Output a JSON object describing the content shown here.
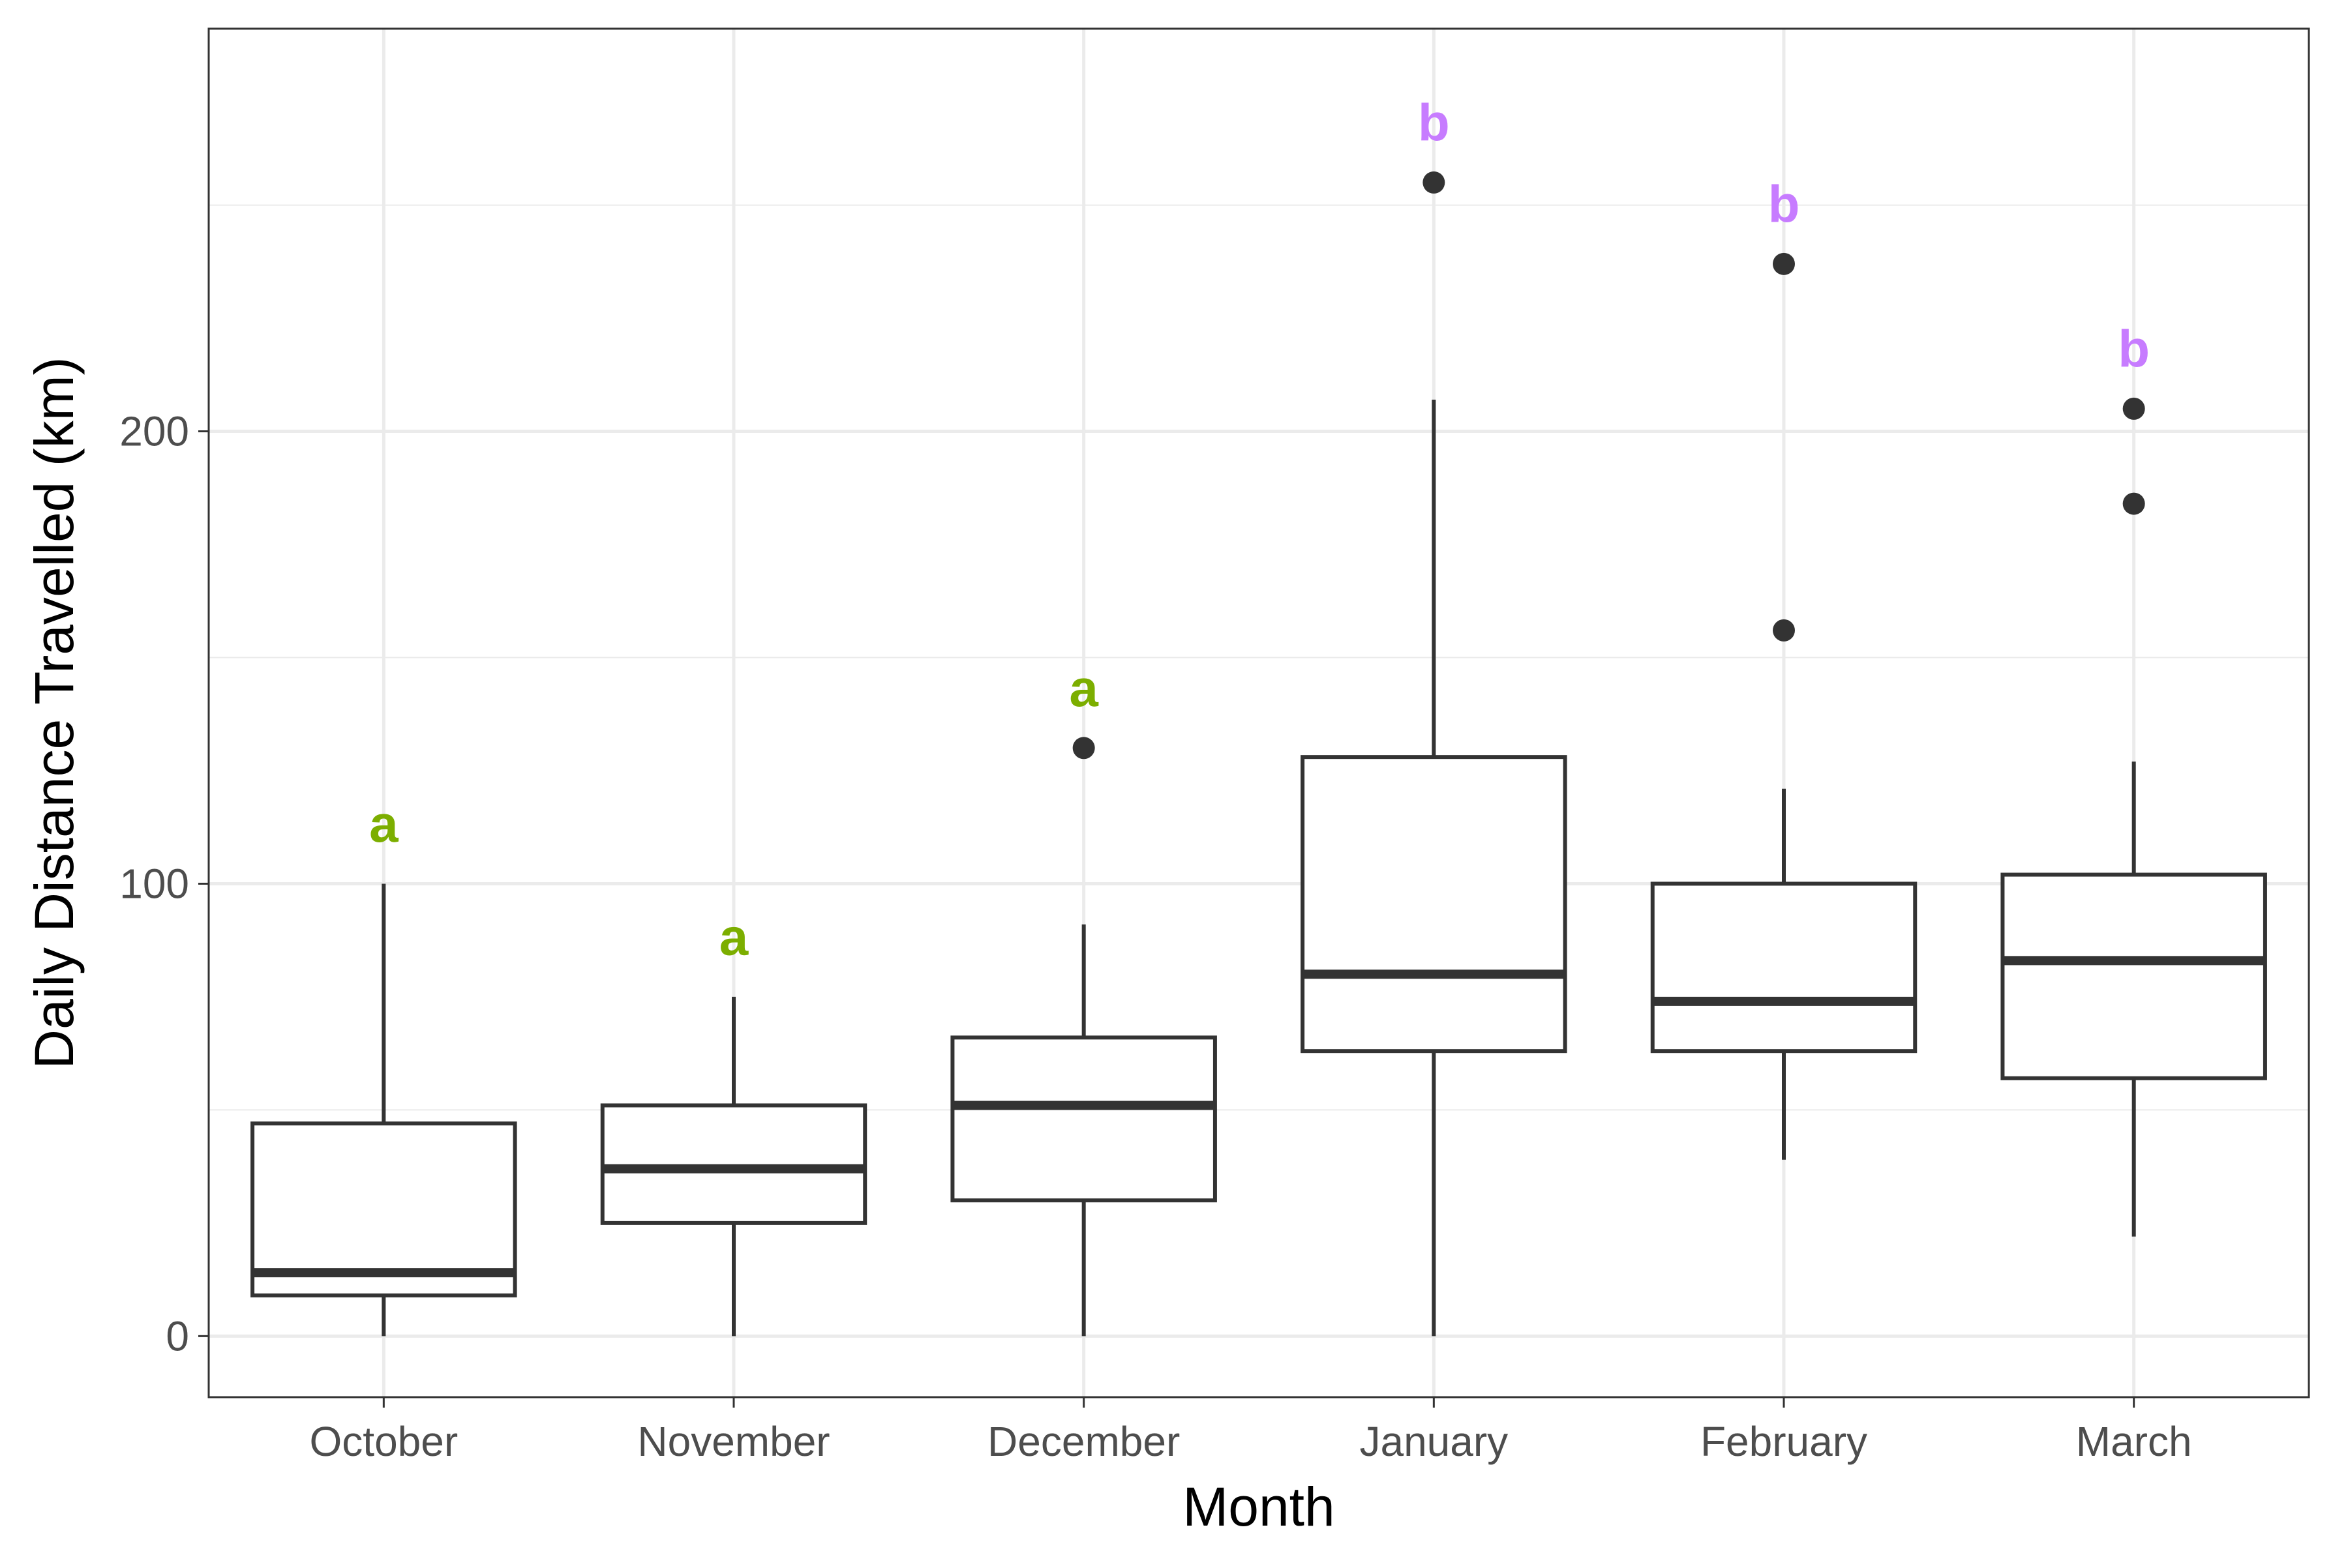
{
  "chart_data": {
    "type": "boxplot",
    "xlabel": "Month",
    "ylabel": "Daily Distance Travelled (km)",
    "categories": [
      "October",
      "November",
      "December",
      "January",
      "February",
      "March"
    ],
    "ylim": [
      -13.5,
      289
    ],
    "yticks": [
      0,
      100,
      200
    ],
    "grid": true,
    "boxes": [
      {
        "category": "October",
        "min": 0,
        "q1": 9,
        "median": 14,
        "q3": 47,
        "max": 100,
        "outliers": [],
        "letter": "a",
        "letter_color": "#7CAE00",
        "letter_y": 113
      },
      {
        "category": "November",
        "min": 0,
        "q1": 25,
        "median": 37,
        "q3": 51,
        "max": 75,
        "outliers": [],
        "letter": "a",
        "letter_color": "#7CAE00",
        "letter_y": 88
      },
      {
        "category": "December",
        "min": 0,
        "q1": 30,
        "median": 51,
        "q3": 66,
        "max": 91,
        "outliers": [
          130
        ],
        "letter": "a",
        "letter_color": "#7CAE00",
        "letter_y": 143
      },
      {
        "category": "January",
        "min": 0,
        "q1": 63,
        "median": 80,
        "q3": 128,
        "max": 207,
        "outliers": [
          255
        ],
        "letter": "b",
        "letter_color": "#C77CFF",
        "letter_y": 268
      },
      {
        "category": "February",
        "min": 39,
        "q1": 63,
        "median": 74,
        "q3": 100,
        "max": 121,
        "outliers": [
          156,
          237
        ],
        "letter": "b",
        "letter_color": "#C77CFF",
        "letter_y": 250
      },
      {
        "category": "March",
        "min": 22,
        "q1": 57,
        "median": 83,
        "q3": 102,
        "max": 127,
        "outliers": [
          184,
          205
        ],
        "letter": "b",
        "letter_color": "#C77CFF",
        "letter_y": 218
      }
    ],
    "colors": {
      "box_stroke": "#333333",
      "outlier": "#333333",
      "grid_major": "#EBEBEB",
      "panel_border": "#333333",
      "tick_label": "#4D4D4D",
      "axis_title": "#000000"
    }
  }
}
